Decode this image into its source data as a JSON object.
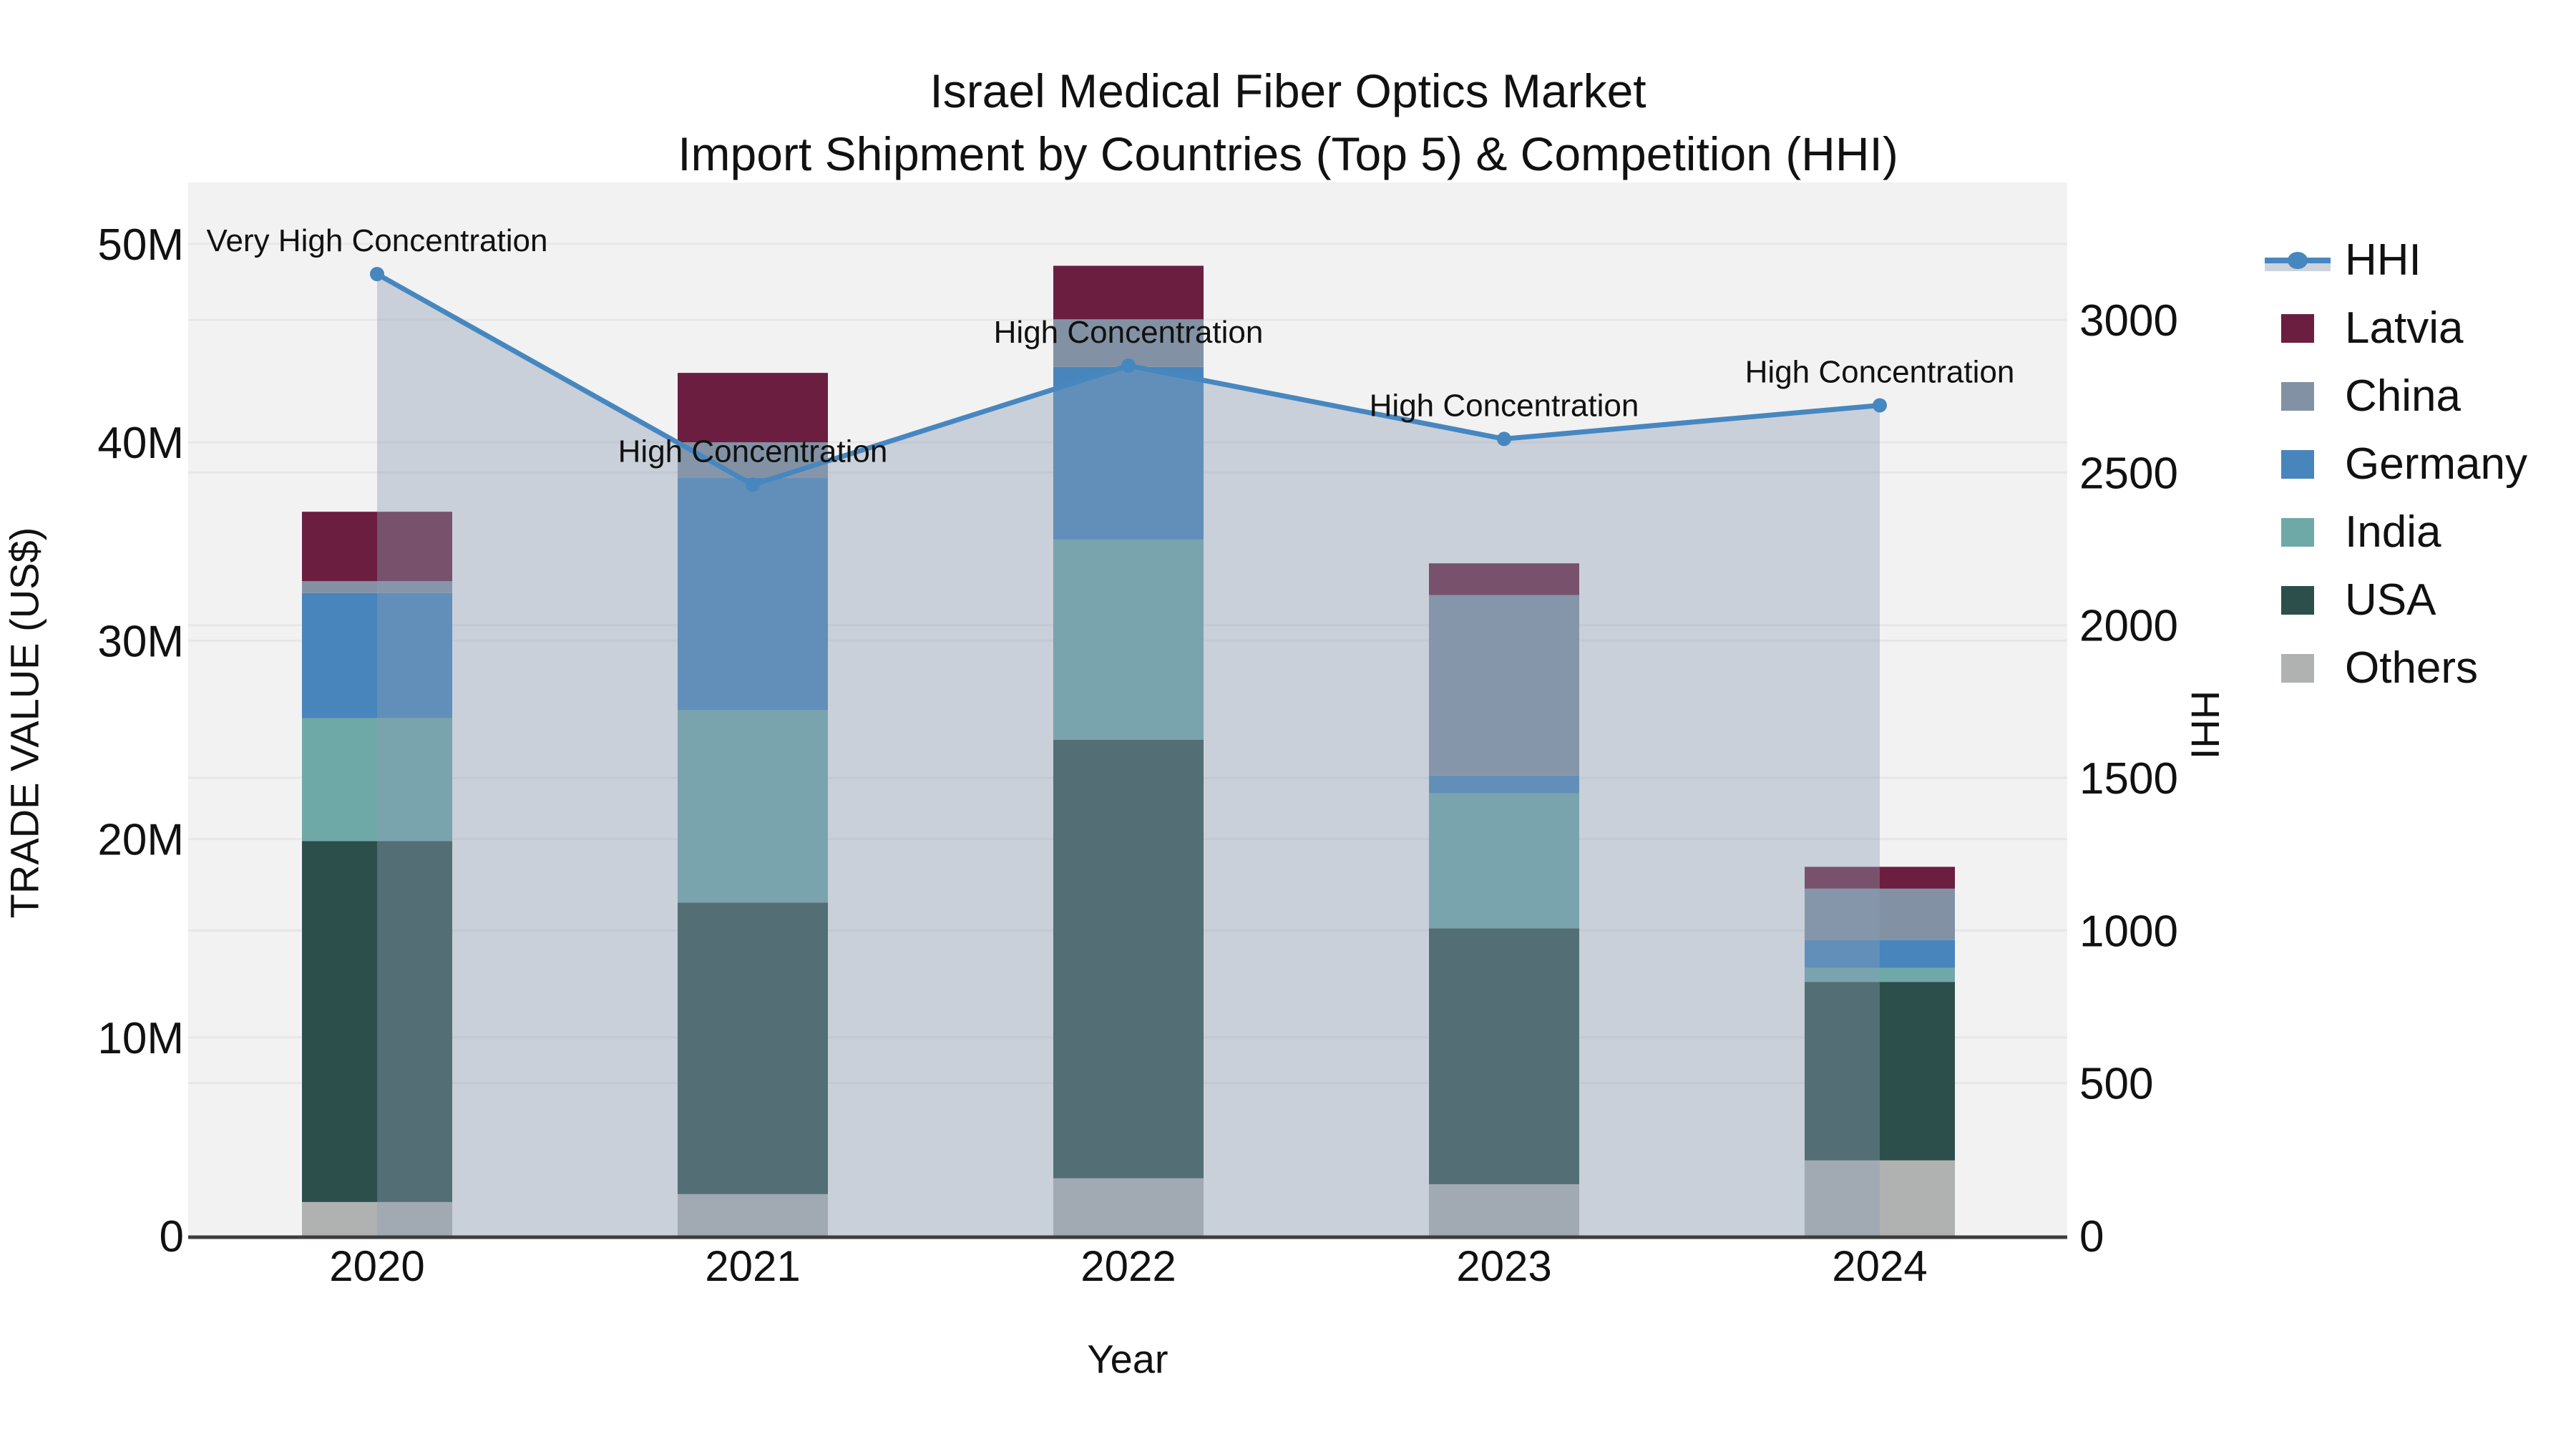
{
  "title": {
    "line1": "Israel Medical Fiber Optics Market",
    "line2": "Import Shipment by Countries (Top 5) & Competition (HHI)"
  },
  "axes": {
    "x": {
      "title": "Year",
      "categories": [
        "2020",
        "2021",
        "2022",
        "2023",
        "2024"
      ]
    },
    "y_left": {
      "title": "TRADE VALUE (US$)",
      "tick_labels": [
        "0",
        "10M",
        "20M",
        "30M",
        "40M",
        "50M"
      ],
      "tick_values_m": [
        0,
        10,
        20,
        30,
        40,
        50
      ],
      "range_m": [
        0,
        53.1
      ]
    },
    "y_right": {
      "title": "HHI",
      "tick_labels": [
        "0",
        "500",
        "1000",
        "1500",
        "2000",
        "2500",
        "3000"
      ],
      "tick_values": [
        0,
        500,
        1000,
        1500,
        2000,
        2500,
        3000
      ],
      "range": [
        0,
        3450
      ]
    }
  },
  "legend": {
    "items": [
      {
        "label": "HHI",
        "type": "line",
        "color": "#4787c0"
      },
      {
        "label": "Latvia",
        "type": "bar",
        "color": "#6b1e3f"
      },
      {
        "label": "China",
        "type": "bar",
        "color": "#8292a4"
      },
      {
        "label": "Germany",
        "type": "bar",
        "color": "#4785bc"
      },
      {
        "label": "India",
        "type": "bar",
        "color": "#6ea9a8"
      },
      {
        "label": "USA",
        "type": "bar",
        "color": "#2d4f4c"
      },
      {
        "label": "Others",
        "type": "bar",
        "color": "#b0b2b1"
      }
    ]
  },
  "chart_data": {
    "type": "bar+line",
    "title": "Israel Medical Fiber Optics Market — Import Shipment by Countries (Top 5) & Competition (HHI)",
    "categories": [
      "2020",
      "2021",
      "2022",
      "2023",
      "2024"
    ],
    "bar_unit": "million US$",
    "stack_order_bottom_to_top": [
      "Others",
      "USA",
      "India",
      "Germany",
      "China",
      "Latvia"
    ],
    "series": [
      {
        "name": "Others",
        "color": "#b0b2b1",
        "values": [
          1.7,
          2.1,
          2.9,
          2.6,
          3.8
        ]
      },
      {
        "name": "USA",
        "color": "#2d4f4c",
        "values": [
          18.2,
          14.7,
          22.1,
          12.9,
          9.0
        ]
      },
      {
        "name": "India",
        "color": "#6ea9a8",
        "values": [
          6.2,
          9.7,
          10.1,
          6.8,
          0.7
        ]
      },
      {
        "name": "Germany",
        "color": "#4785bc",
        "values": [
          6.3,
          11.7,
          8.7,
          0.9,
          1.4
        ]
      },
      {
        "name": "China",
        "color": "#8292a4",
        "values": [
          0.6,
          1.8,
          2.4,
          9.1,
          2.6
        ]
      },
      {
        "name": "Latvia",
        "color": "#6b1e3f",
        "values": [
          3.5,
          3.5,
          2.7,
          1.6,
          1.1
        ]
      }
    ],
    "bar_totals_m": [
      36.5,
      43.5,
      48.9,
      33.9,
      18.6
    ],
    "line_series": {
      "name": "HHI",
      "axis": "right",
      "color": "#4787c0",
      "values": [
        3150,
        2460,
        2850,
        2610,
        2720
      ],
      "area_fill": "rgba(140,158,180,0.40)"
    },
    "annotations": [
      {
        "category": "2020",
        "text": "Very High Concentration"
      },
      {
        "category": "2021",
        "text": "High Concentration"
      },
      {
        "category": "2022",
        "text": "High Concentration"
      },
      {
        "category": "2023",
        "text": "High Concentration"
      },
      {
        "category": "2024",
        "text": "High Concentration"
      }
    ],
    "xlabel": "Year",
    "ylabel_left": "TRADE VALUE (US$)",
    "ylabel_right": "HHI",
    "grid": true,
    "legend_position": "right",
    "plot_background": "#f2f2f2",
    "gridline_color": "#e7e7e7",
    "axis_line_color": "#3d3d3d",
    "text_color": "#111111"
  }
}
